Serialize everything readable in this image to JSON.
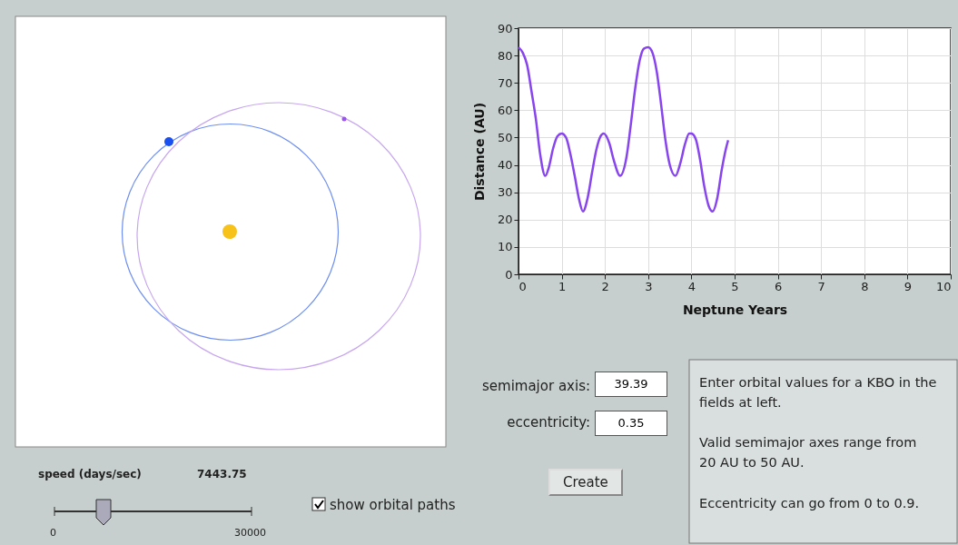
{
  "chart_data": {
    "type": "line",
    "xlabel": "Neptune Years",
    "ylabel": "Distance (AU)",
    "xlim": [
      0,
      10
    ],
    "ylim": [
      0,
      90
    ],
    "xticks": [
      0,
      1,
      2,
      3,
      4,
      5,
      6,
      7,
      8,
      9,
      10
    ],
    "yticks": [
      0,
      10,
      20,
      30,
      40,
      50,
      60,
      70,
      80,
      90
    ],
    "grid": true,
    "marker": "none",
    "line_style": "solid",
    "series": [
      {
        "color": "#8844ee",
        "x": [
          0,
          0.1,
          0.2,
          0.3,
          0.4,
          0.5,
          0.62,
          0.7,
          0.8,
          0.9,
          1.0,
          1.1,
          1.2,
          1.3,
          1.4,
          1.49,
          1.6,
          1.7,
          1.8,
          1.9,
          1.97,
          2.1,
          2.2,
          2.35,
          2.5,
          2.6,
          2.7,
          2.8,
          2.9,
          3.0,
          3.1,
          3.2,
          3.3,
          3.4,
          3.5,
          3.63,
          3.75,
          3.85,
          3.95,
          4.0,
          4.1,
          4.2,
          4.3,
          4.4,
          4.49,
          4.6,
          4.7,
          4.8,
          4.85
        ],
        "values": [
          83,
          81,
          76.5,
          67,
          57,
          44,
          36,
          39,
          46,
          50.5,
          51.5,
          50,
          44,
          36,
          27.5,
          23,
          28,
          37,
          45.5,
          50.5,
          51.5,
          48,
          42,
          36,
          43,
          55,
          68,
          78,
          82.5,
          83,
          81,
          74,
          62,
          49,
          40,
          36,
          41,
          47.5,
          51.5,
          51.5,
          49.5,
          42,
          32,
          25,
          23,
          28,
          38,
          46,
          49
        ]
      }
    ],
    "annotations": [
      "speed (days/sec)",
      "7443.75",
      "0",
      "30000",
      "show orbital paths",
      "semimajor axis:",
      "39.39",
      "eccentricity:",
      "0.35",
      "Create",
      "Enter orbital values for a KBO in the fields at left.",
      "Valid semimajor axes range from 20 AU to 50 AU.",
      "Eccentricity can go from 0 to 0.9."
    ]
  }
}
